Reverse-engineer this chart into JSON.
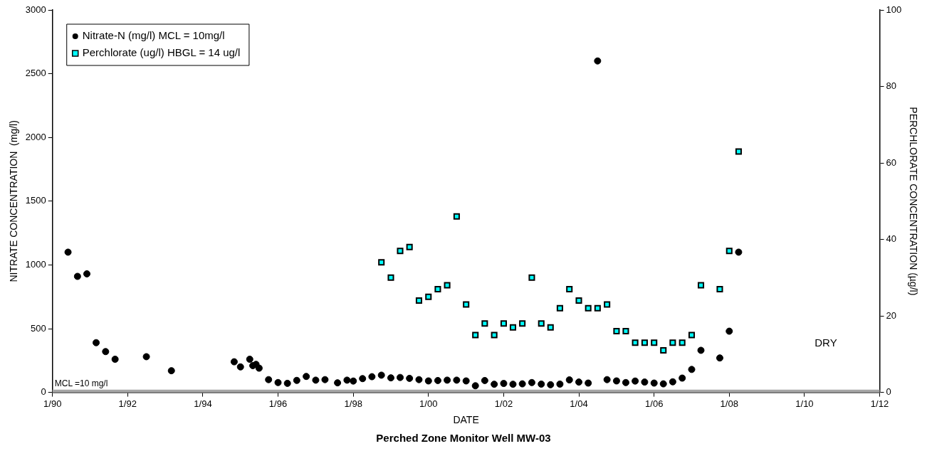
{
  "chart_data": {
    "type": "scatter",
    "title": "Perched Zone Monitor Well MW-03",
    "xlabel": "DATE",
    "ylabel": "NITRATE CONCENTRATION  (mg/l)",
    "y2label": "PERCHLORATE CONCENTRATION (µg/l)",
    "xlim": [
      "1990-01",
      "2012-01"
    ],
    "xticks": [
      {
        "value": "1990-01",
        "label": "1/90"
      },
      {
        "value": "1992-01",
        "label": "1/92"
      },
      {
        "value": "1994-01",
        "label": "1/94"
      },
      {
        "value": "1996-01",
        "label": "1/96"
      },
      {
        "value": "1998-01",
        "label": "1/98"
      },
      {
        "value": "2000-01",
        "label": "1/00"
      },
      {
        "value": "2002-01",
        "label": "1/02"
      },
      {
        "value": "2004-01",
        "label": "1/04"
      },
      {
        "value": "2006-01",
        "label": "1/06"
      },
      {
        "value": "2008-01",
        "label": "1/08"
      },
      {
        "value": "2010-01",
        "label": "1/10"
      },
      {
        "value": "2012-01",
        "label": "1/12"
      }
    ],
    "ylim": [
      0,
      3000
    ],
    "yticks": [
      0,
      500,
      1000,
      1500,
      2000,
      2500,
      3000
    ],
    "y2lim": [
      0,
      100
    ],
    "y2ticks": [
      0,
      20,
      40,
      60,
      80,
      100
    ],
    "grid": false,
    "legend": "top left",
    "series": [
      {
        "name": "Nitrate-N (mg/l) MCL = 10mg/l",
        "color": "#000000",
        "marker": "circle",
        "x": [
          "1990-06",
          "1990-09",
          "1990-12",
          "1991-03",
          "1991-06",
          "1991-09",
          "1992-07",
          "1993-03",
          "1994-11",
          "1995-01",
          "1995-04",
          "1995-05",
          "1995-06",
          "1995-07",
          "1995-10",
          "1996-01",
          "1996-04",
          "1996-07",
          "1996-10",
          "1997-01",
          "1997-04",
          "1997-08",
          "1997-11",
          "1998-01",
          "1998-04",
          "1998-07",
          "1998-10",
          "1999-01",
          "1999-04",
          "1999-07",
          "1999-10",
          "2000-01",
          "2000-04",
          "2000-07",
          "2000-10",
          "2001-01",
          "2001-04",
          "2001-07",
          "2001-10",
          "2002-01",
          "2002-04",
          "2002-07",
          "2002-10",
          "2003-01",
          "2003-04",
          "2003-07",
          "2003-10",
          "2004-01",
          "2004-04",
          "2004-07",
          "2004-10",
          "2005-01",
          "2005-04",
          "2005-07",
          "2005-10",
          "2006-01",
          "2006-04",
          "2006-07",
          "2006-10",
          "2007-01",
          "2007-04",
          "2007-10",
          "2008-01",
          "2008-04"
        ],
        "values": [
          1100,
          910,
          930,
          390,
          320,
          260,
          280,
          170,
          240,
          200,
          260,
          210,
          220,
          190,
          100,
          77,
          71,
          94,
          125,
          96,
          100,
          75,
          96,
          89,
          108,
          123,
          135,
          114,
          117,
          110,
          100,
          90,
          93,
          96,
          96,
          90,
          52,
          93,
          64,
          70,
          64,
          67,
          77,
          65,
          60,
          65,
          98,
          81,
          73,
          2600,
          100,
          90,
          77,
          89,
          81,
          73,
          67,
          83,
          112,
          180,
          330,
          270,
          480,
          1100
        ]
      },
      {
        "name": "Perchlorate (ug/l) HBGL = 14 ug/l",
        "color": "#00ffff",
        "marker": "square",
        "axis": "y2",
        "x": [
          "1998-10",
          "1999-01",
          "1999-04",
          "1999-07",
          "1999-10",
          "2000-01",
          "2000-04",
          "2000-07",
          "2000-10",
          "2001-01",
          "2001-04",
          "2001-07",
          "2001-10",
          "2002-01",
          "2002-04",
          "2002-07",
          "2002-10",
          "2003-01",
          "2003-04",
          "2003-07",
          "2003-10",
          "2004-01",
          "2004-04",
          "2004-07",
          "2004-10",
          "2005-01",
          "2005-04",
          "2005-07",
          "2005-10",
          "2006-01",
          "2006-04",
          "2006-07",
          "2006-10",
          "2007-01",
          "2007-04",
          "2007-10",
          "2008-01",
          "2008-04"
        ],
        "values": [
          34,
          30,
          37,
          38,
          24,
          25,
          27,
          28,
          46,
          23,
          15,
          18,
          15,
          18,
          17,
          18,
          30,
          18,
          17,
          22,
          27,
          24,
          22,
          22,
          23,
          16,
          16,
          13,
          13,
          13,
          11,
          13,
          13,
          15,
          28,
          27,
          37,
          63
        ]
      }
    ],
    "ref_lines": [
      {
        "axis": "y",
        "value": 10,
        "label": "MCL =10 mg/l",
        "color": "#a6a6a6"
      }
    ],
    "annotations": [
      "DRY"
    ]
  }
}
